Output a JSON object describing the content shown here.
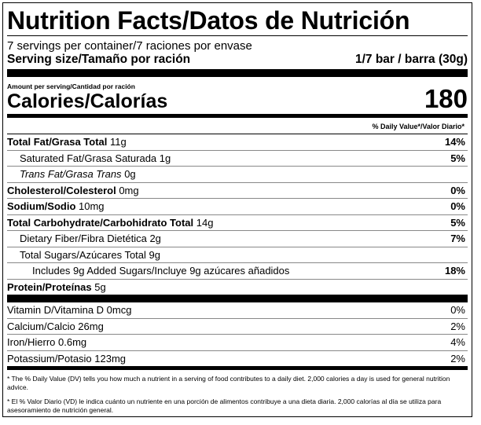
{
  "title": "Nutrition Facts/Datos de Nutrición",
  "servings_per_container": "7 servings per container/7 raciones por envase",
  "serving_size": {
    "label": "Serving size/Tamaño por ración",
    "value": "1/7 bar / barra (30g)"
  },
  "amount_per_serving": "Amount per serving/Cantidad por ración",
  "calories": {
    "label": "Calories/Calorías",
    "value": "180"
  },
  "dv_header": "% Daily Value*/Valor Diario*",
  "nutrients": [
    {
      "name": "Total Fat/Grasa Total",
      "amount": "11g",
      "dv": "14%"
    },
    {
      "name": "Saturated Fat/Grasa Saturada",
      "amount": "1g",
      "dv": "5%"
    },
    {
      "name": "Trans Fat/Grasa Trans",
      "amount": "0g",
      "dv": ""
    },
    {
      "name": "Cholesterol/Colesterol",
      "amount": "0mg",
      "dv": "0%"
    },
    {
      "name": "Sodium/Sodio",
      "amount": "10mg",
      "dv": "0%"
    },
    {
      "name": "Total Carbohydrate/Carbohidrato Total",
      "amount": "14g",
      "dv": "5%"
    },
    {
      "name": "Dietary Fiber/Fibra Dietética",
      "amount": "2g",
      "dv": "7%"
    },
    {
      "name": "Total Sugars/Azúcares Total",
      "amount": "9g",
      "dv": ""
    },
    {
      "name": "Includes 9g Added Sugars/Incluye 9g azúcares añadidos",
      "amount": "",
      "dv": "18%"
    },
    {
      "name": "Protein/Proteínas",
      "amount": "5g",
      "dv": ""
    }
  ],
  "vitamins": [
    {
      "text": "Vitamin D/Vitamina D 0mcg",
      "dv": "0%"
    },
    {
      "text": "Calcium/Calcio 26mg",
      "dv": "2%"
    },
    {
      "text": "Iron/Hierro 0.6mg",
      "dv": "4%"
    },
    {
      "text": "Potassium/Potasio 123mg",
      "dv": "2%"
    }
  ],
  "footnote_en": "* The % Daily Value (DV) tells you how much a nutrient in a serving of food contributes to a daily diet. 2,000 calories a day is used for general nutrition advice.",
  "footnote_es": "* El % Valor Diario (VD) le indica cuánto un nutriente en una porción de alimentos contribuye a una dieta diaria. 2,000 calorías al día se utiliza para asesoramiento de nutrición general."
}
